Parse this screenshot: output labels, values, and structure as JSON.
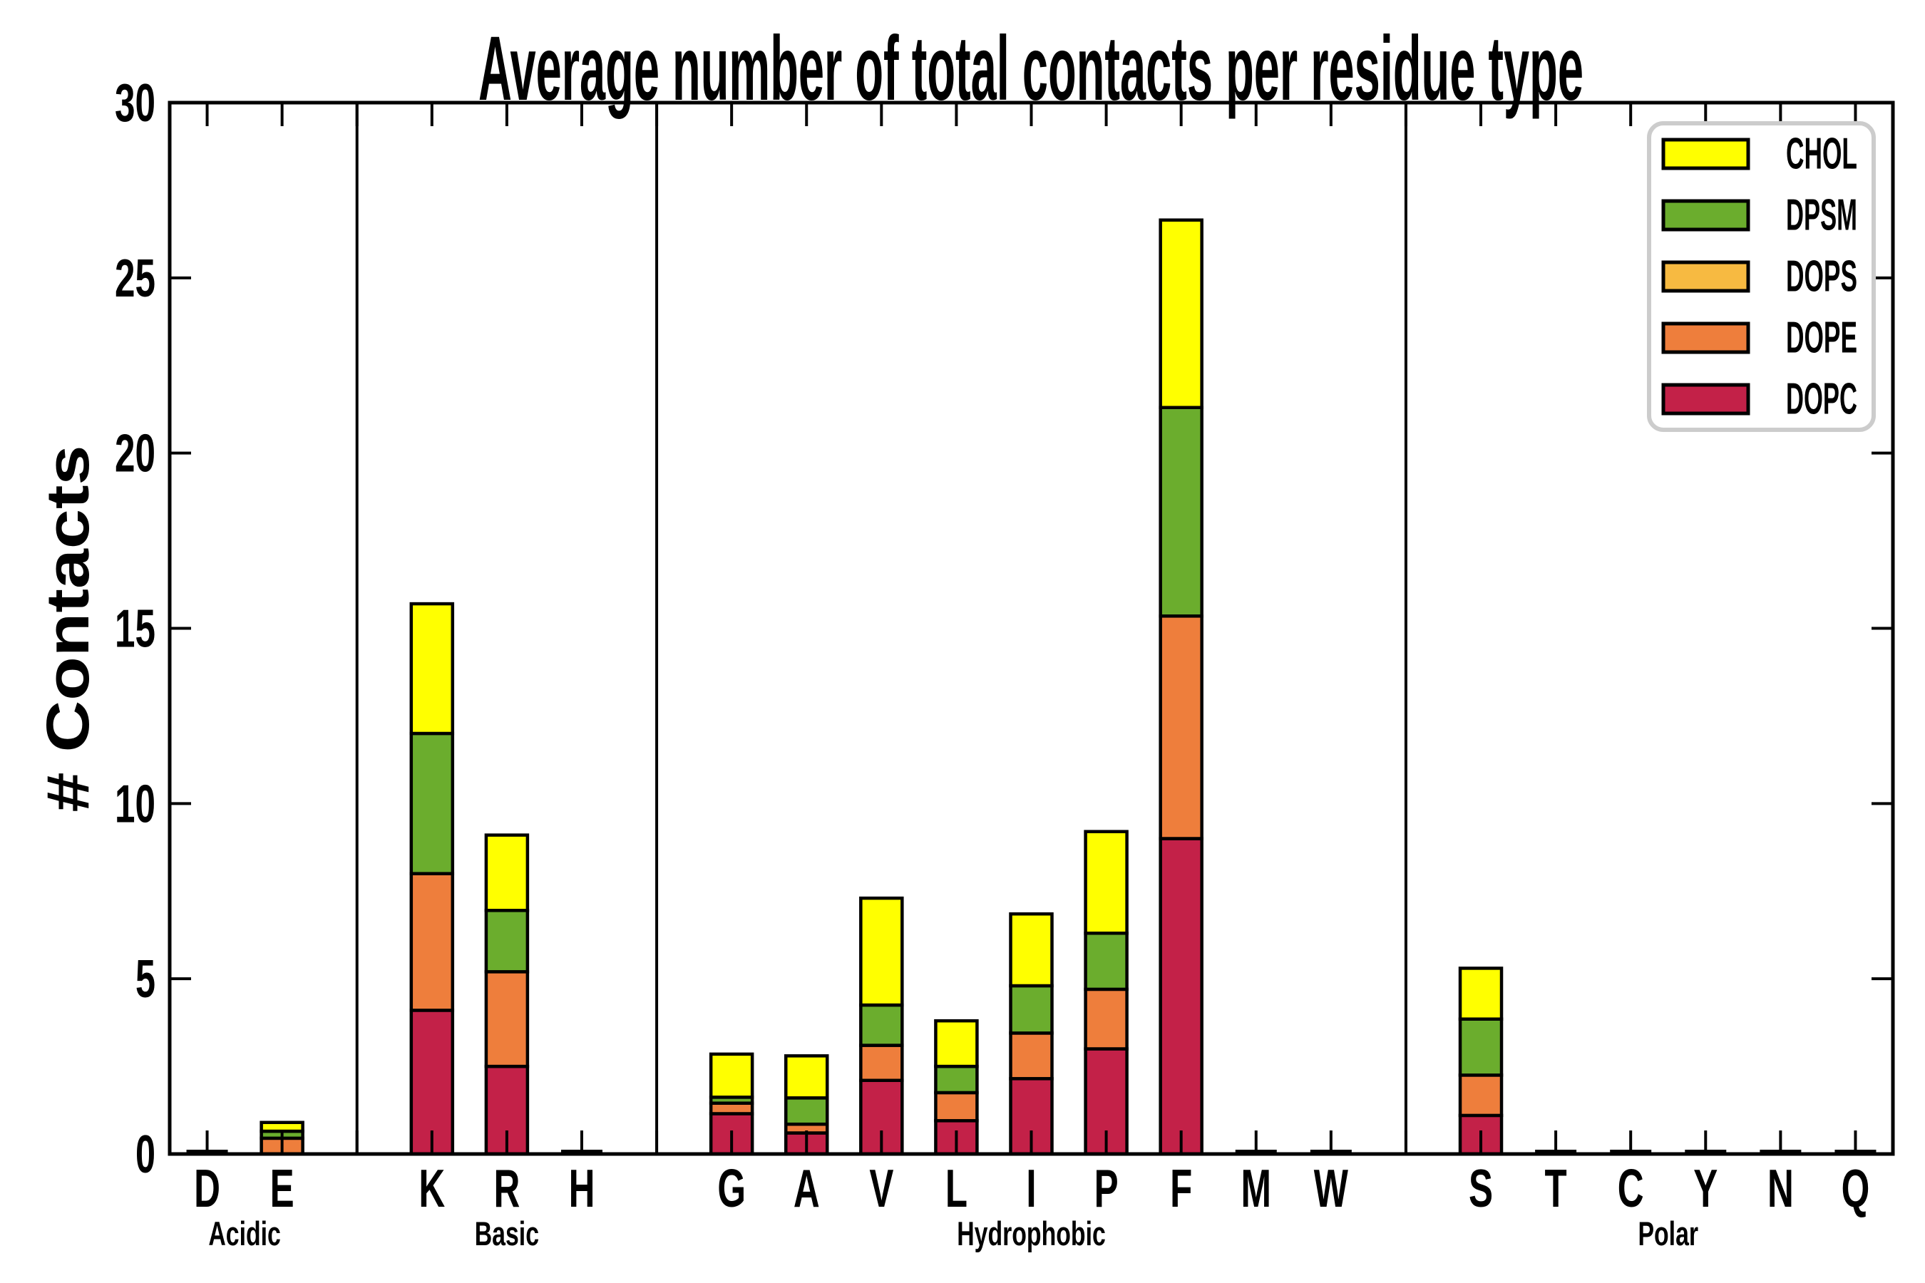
{
  "chart_data": {
    "type": "bar",
    "stacked": true,
    "title": "Average number of total contacts per residue type",
    "ylabel": "# Contacts",
    "xlabel": "",
    "ylim": [
      0,
      30
    ],
    "yticks": [
      0,
      5,
      10,
      15,
      20,
      25,
      30
    ],
    "grid": false,
    "legend": {
      "position": "upper-right",
      "entries": [
        "CHOL",
        "DPSM",
        "DOPS",
        "DOPE",
        "DOPC"
      ]
    },
    "colors": {
      "CHOL": "#FFFF00",
      "DPSM": "#6BAD2D",
      "DOPS": "#F7BA41",
      "DOPE": "#EE7E3C",
      "DOPC": "#C32148"
    },
    "stack_order_bottom_to_top": [
      "DOPC",
      "DOPE",
      "DOPS",
      "DPSM",
      "CHOL"
    ],
    "groups": [
      {
        "label": "Acidic",
        "residues": [
          "D",
          "E"
        ]
      },
      {
        "label": "Basic",
        "residues": [
          "K",
          "R",
          "H"
        ]
      },
      {
        "label": "Hydrophobic",
        "residues": [
          "G",
          "A",
          "V",
          "L",
          "I",
          "P",
          "F",
          "M",
          "W"
        ]
      },
      {
        "label": "Polar",
        "residues": [
          "S",
          "T",
          "C",
          "Y",
          "N",
          "Q"
        ]
      }
    ],
    "values": {
      "D": {
        "DOPC": 0.05,
        "DOPE": 0,
        "DOPS": 0,
        "DPSM": 0,
        "CHOL": 0
      },
      "E": {
        "DOPC": 0,
        "DOPE": 0.45,
        "DOPS": 0,
        "DPSM": 0.2,
        "CHOL": 0.25
      },
      "K": {
        "DOPC": 4.1,
        "DOPE": 3.9,
        "DOPS": 0,
        "DPSM": 4.0,
        "CHOL": 3.7
      },
      "R": {
        "DOPC": 2.5,
        "DOPE": 2.7,
        "DOPS": 0,
        "DPSM": 1.75,
        "CHOL": 2.15
      },
      "H": {
        "DOPC": 0.05,
        "DOPE": 0,
        "DOPS": 0,
        "DPSM": 0,
        "CHOL": 0
      },
      "G": {
        "DOPC": 1.15,
        "DOPE": 0.3,
        "DOPS": 0,
        "DPSM": 0.17,
        "CHOL": 1.23
      },
      "A": {
        "DOPC": 0.6,
        "DOPE": 0.25,
        "DOPS": 0,
        "DPSM": 0.75,
        "CHOL": 1.2
      },
      "V": {
        "DOPC": 2.1,
        "DOPE": 1.0,
        "DOPS": 0,
        "DPSM": 1.15,
        "CHOL": 3.05
      },
      "L": {
        "DOPC": 0.95,
        "DOPE": 0.8,
        "DOPS": 0,
        "DPSM": 0.75,
        "CHOL": 1.3
      },
      "I": {
        "DOPC": 2.15,
        "DOPE": 1.3,
        "DOPS": 0,
        "DPSM": 1.35,
        "CHOL": 2.05
      },
      "P": {
        "DOPC": 3.0,
        "DOPE": 1.7,
        "DOPS": 0,
        "DPSM": 1.6,
        "CHOL": 2.9
      },
      "F": {
        "DOPC": 9.0,
        "DOPE": 6.35,
        "DOPS": 0,
        "DPSM": 5.95,
        "CHOL": 5.35
      },
      "M": {
        "DOPC": 0.05,
        "DOPE": 0,
        "DOPS": 0,
        "DPSM": 0,
        "CHOL": 0
      },
      "W": {
        "DOPC": 0.05,
        "DOPE": 0,
        "DOPS": 0,
        "DPSM": 0,
        "CHOL": 0
      },
      "S": {
        "DOPC": 1.1,
        "DOPE": 1.15,
        "DOPS": 0,
        "DPSM": 1.6,
        "CHOL": 1.45
      },
      "T": {
        "DOPC": 0.04,
        "DOPE": 0,
        "DOPS": 0,
        "DPSM": 0,
        "CHOL": 0
      },
      "C": {
        "DOPC": 0.04,
        "DOPE": 0,
        "DOPS": 0,
        "DPSM": 0,
        "CHOL": 0
      },
      "Y": {
        "DOPC": 0.04,
        "DOPE": 0,
        "DOPS": 0,
        "DPSM": 0,
        "CHOL": 0
      },
      "N": {
        "DOPC": 0.04,
        "DOPE": 0,
        "DOPS": 0,
        "DPSM": 0,
        "CHOL": 0
      },
      "Q": {
        "DOPC": 0.04,
        "DOPE": 0,
        "DOPS": 0,
        "DPSM": 0,
        "CHOL": 0
      }
    },
    "style": {
      "bar_outline_color": "#000000",
      "axes_color": "#000000",
      "legend_border_color": "#CCCCCC",
      "background_color": "#FFFFFF"
    }
  }
}
